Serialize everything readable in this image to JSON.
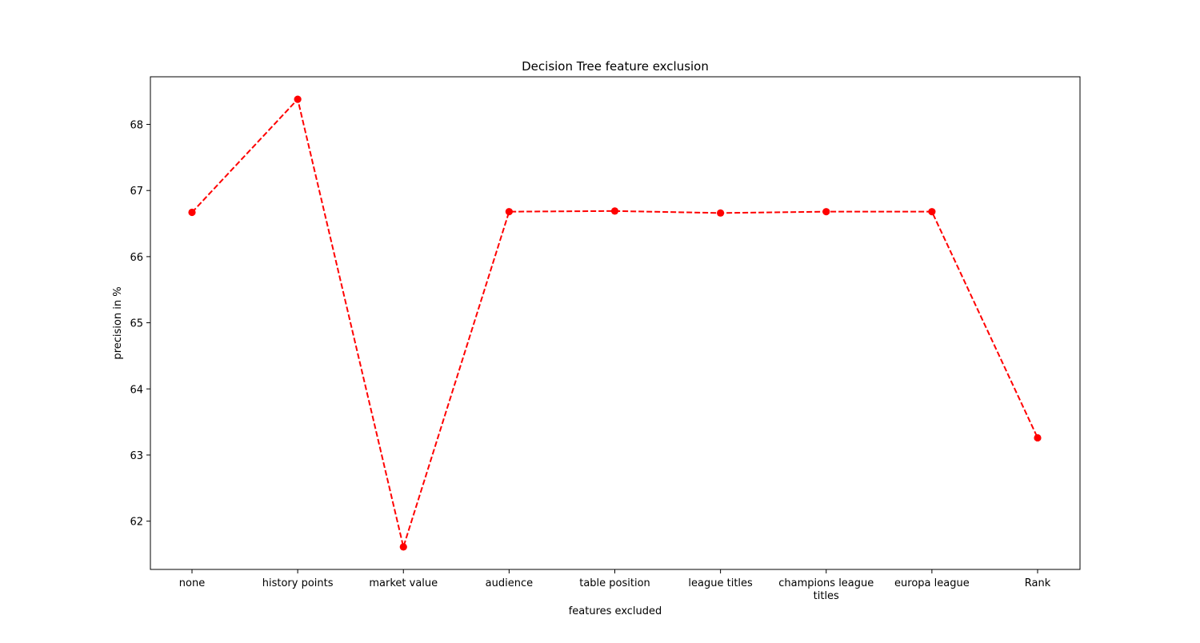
{
  "chart_data": {
    "type": "line",
    "title": "Decision Tree feature exclusion",
    "xlabel": "features excluded",
    "ylabel": "precision in %",
    "categories": [
      [
        "none"
      ],
      [
        "history points"
      ],
      [
        "market value"
      ],
      [
        "audience"
      ],
      [
        "table position"
      ],
      [
        "league titles"
      ],
      [
        "champions league",
        "titles"
      ],
      [
        "europa league"
      ],
      [
        "Rank"
      ]
    ],
    "series": [
      {
        "values": [
          66.67,
          68.38,
          61.61,
          66.68,
          66.69,
          66.66,
          66.68,
          66.68,
          63.26
        ],
        "color": "#ff0000",
        "line_style": "dashed",
        "marker": "circle"
      }
    ],
    "yticks": [
      "62",
      "63",
      "64",
      "65",
      "66",
      "67",
      "68"
    ],
    "ylim": [
      61.27,
      68.72
    ],
    "grid": false,
    "legend": "none"
  }
}
